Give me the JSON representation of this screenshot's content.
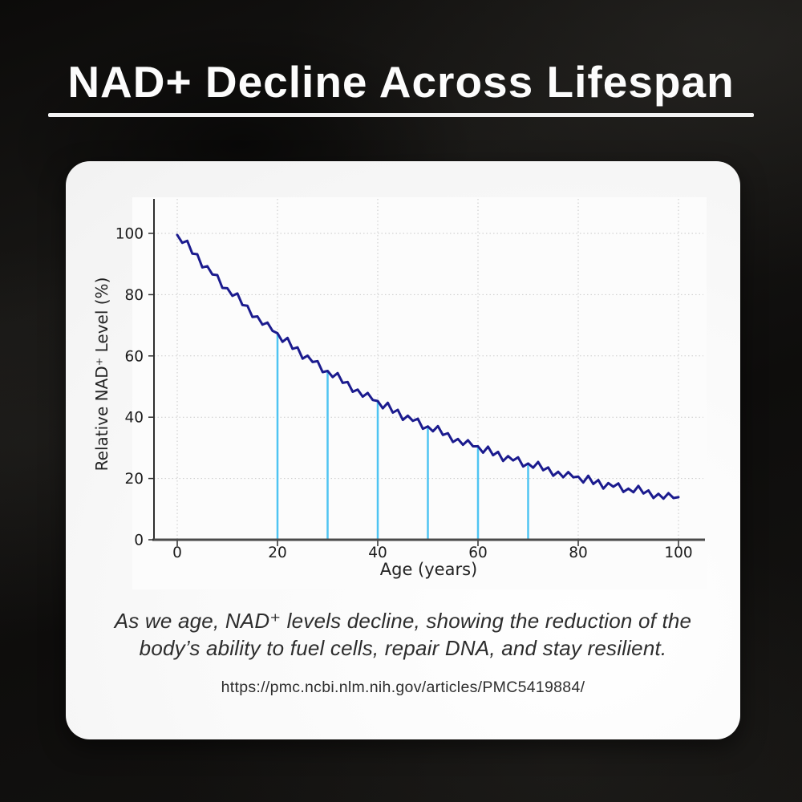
{
  "header": {
    "title": "NAD+ Decline Across Lifespan"
  },
  "caption": {
    "line1": "As we age, NAD⁺ levels decline, showing the reduction of the",
    "line2": "body’s ability to fuel cells, repair DNA, and stay resilient.",
    "source_url": "https://pmc.ncbi.nlm.nih.gov/articles/PMC5419884/"
  },
  "chart_data": {
    "type": "line",
    "title": "",
    "xlabel": "Age (years)",
    "ylabel": "Relative NAD⁺ Level (%)",
    "xlim": [
      -5,
      105
    ],
    "ylim": [
      0,
      110
    ],
    "x_ticks": [
      0,
      20,
      40,
      60,
      80,
      100
    ],
    "y_ticks": [
      0,
      20,
      40,
      60,
      80,
      100
    ],
    "grid": true,
    "grid_style": "dotted",
    "legend_position": "none",
    "line_color": "#1b1b8e",
    "marker_line_color": "#4fc4f2",
    "grid_color": "#c9c9c9",
    "axis_color": "#4a4a4a",
    "tick_label_color": "#1c1c1c",
    "marker_lines": [
      {
        "age": 20,
        "value": 67.4
      },
      {
        "age": 30,
        "value": 55.1
      },
      {
        "age": 40,
        "value": 45.3
      },
      {
        "age": 50,
        "value": 37.0
      },
      {
        "age": 60,
        "value": 30.5
      },
      {
        "age": 70,
        "value": 24.9
      }
    ],
    "series": [
      {
        "name": "Relative NAD+ Level (%)",
        "x": [
          0,
          1,
          2,
          3,
          4,
          5,
          6,
          7,
          8,
          9,
          10,
          11,
          12,
          13,
          14,
          15,
          16,
          17,
          18,
          19,
          20,
          21,
          22,
          23,
          24,
          25,
          26,
          27,
          28,
          29,
          30,
          31,
          32,
          33,
          34,
          35,
          36,
          37,
          38,
          39,
          40,
          41,
          42,
          43,
          44,
          45,
          46,
          47,
          48,
          49,
          50,
          51,
          52,
          53,
          54,
          55,
          56,
          57,
          58,
          59,
          60,
          61,
          62,
          63,
          64,
          65,
          66,
          67,
          68,
          69,
          70,
          71,
          72,
          73,
          74,
          75,
          76,
          77,
          78,
          79,
          80,
          81,
          82,
          83,
          84,
          85,
          86,
          87,
          88,
          89,
          90,
          91,
          92,
          93,
          94,
          95,
          96,
          97,
          98,
          99,
          100
        ],
        "y": [
          99.5,
          96.9,
          97.6,
          93.4,
          93.2,
          88.9,
          89.3,
          86.6,
          86.4,
          82.2,
          82.1,
          79.6,
          80.4,
          76.6,
          76.4,
          72.7,
          72.9,
          70.2,
          70.9,
          68.2,
          67.4,
          64.6,
          65.9,
          62.3,
          62.8,
          59.1,
          60.1,
          58.0,
          58.3,
          54.7,
          55.1,
          53.1,
          54.4,
          51.2,
          51.5,
          48.3,
          49.0,
          46.7,
          47.9,
          45.6,
          45.3,
          42.9,
          44.7,
          41.5,
          42.4,
          39.1,
          40.5,
          38.8,
          39.5,
          36.2,
          37.0,
          35.4,
          37.1,
          34.2,
          34.8,
          31.9,
          32.9,
          31.0,
          32.5,
          30.5,
          30.5,
          28.4,
          30.4,
          27.6,
          28.7,
          25.7,
          27.3,
          25.9,
          26.9,
          23.9,
          24.9,
          23.5,
          25.4,
          22.7,
          23.6,
          20.9,
          22.2,
          20.4,
          22.1,
          20.4,
          20.6,
          18.7,
          20.9,
          18.2,
          19.5,
          16.7,
          18.5,
          17.3,
          18.4,
          15.6,
          16.7,
          15.5,
          17.6,
          15.1,
          16.1,
          13.6,
          15.0,
          13.4,
          15.2,
          13.6,
          13.9
        ]
      }
    ]
  }
}
